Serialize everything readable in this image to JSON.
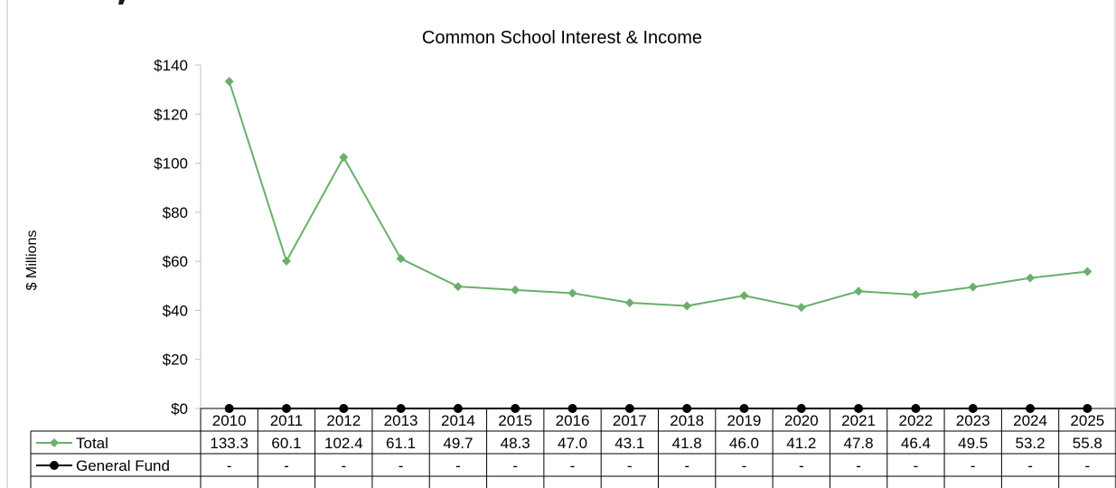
{
  "chart_data": {
    "type": "line",
    "title": "Common School Interest & Income",
    "xlabel": "",
    "ylabel": "$ Millions",
    "ylim": [
      0,
      140
    ],
    "ytick_step": 20,
    "ytick_labels": [
      "$0",
      "$20",
      "$40",
      "$60",
      "$80",
      "$100",
      "$120",
      "$140"
    ],
    "categories": [
      "2010",
      "2011",
      "2012",
      "2013",
      "2014",
      "2015",
      "2016",
      "2017",
      "2018",
      "2019",
      "2020",
      "2021",
      "2022",
      "2023",
      "2024",
      "2025"
    ],
    "series": [
      {
        "name": "Total",
        "color": "#6aaf6a",
        "marker": "diamond",
        "values": [
          133.3,
          60.1,
          102.4,
          61.1,
          49.7,
          48.3,
          47.0,
          43.1,
          41.8,
          46.0,
          41.2,
          47.8,
          46.4,
          49.5,
          53.2,
          55.8
        ],
        "labels": [
          "133.3",
          "60.1",
          "102.4",
          "61.1",
          "49.7",
          "48.3",
          "47.0",
          "43.1",
          "41.8",
          "46.0",
          "41.2",
          "47.8",
          "46.4",
          "49.5",
          "53.2",
          "55.8"
        ]
      },
      {
        "name": "General Fund",
        "color": "#000000",
        "marker": "circle",
        "values": [
          0,
          0,
          0,
          0,
          0,
          0,
          0,
          0,
          0,
          0,
          0,
          0,
          0,
          0,
          0,
          0
        ],
        "labels": [
          "-",
          "-",
          "-",
          "-",
          "-",
          "-",
          "-",
          "-",
          "-",
          "-",
          "-",
          "-",
          "-",
          "-",
          "-",
          "-"
        ]
      }
    ],
    "grid": false,
    "data_table": true
  }
}
